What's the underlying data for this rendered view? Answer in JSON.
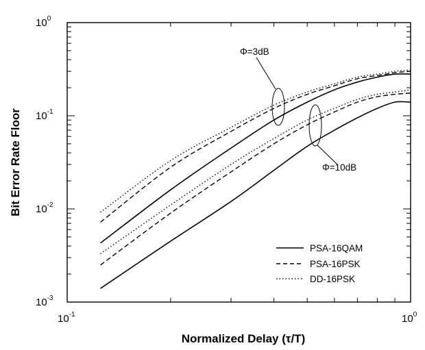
{
  "chart_data": {
    "type": "line",
    "xlabel": "Normalized Delay (τ/T)",
    "ylabel": "Bit Error Rate Floor",
    "xscale": "log",
    "yscale": "log",
    "xlim": [
      0.1,
      1
    ],
    "ylim": [
      0.001,
      1
    ],
    "grid": false,
    "legend_position": "bottom-right",
    "x_ticks": [
      {
        "base": "10",
        "exp": "-1"
      },
      {
        "base": "10",
        "exp": "0"
      }
    ],
    "y_ticks": [
      {
        "base": "10",
        "exp": "0"
      },
      {
        "base": "10",
        "exp": "-1"
      },
      {
        "base": "10",
        "exp": "-2"
      },
      {
        "base": "10",
        "exp": "-3"
      }
    ],
    "legend": [
      {
        "label": "PSA-16QAM",
        "style": "solid"
      },
      {
        "label": "PSA-16PSK",
        "style": "dashed"
      },
      {
        "label": "DD-16PSK",
        "style": "dotted"
      }
    ],
    "annotations": [
      {
        "text": "Φ=3dB",
        "x": 0.435,
        "y": 0.11
      },
      {
        "text": "Φ=10dB",
        "x": 0.59,
        "y": 0.07
      }
    ],
    "series": [
      {
        "name": "PSA-16QAM",
        "group": "Φ=3dB",
        "style": "solid",
        "x": [
          0.125,
          0.2,
          0.3,
          0.4,
          0.5,
          0.6,
          0.7,
          0.8,
          0.9,
          1.0
        ],
        "y": [
          0.0043,
          0.016,
          0.045,
          0.09,
          0.14,
          0.19,
          0.23,
          0.26,
          0.28,
          0.28
        ]
      },
      {
        "name": "PSA-16PSK",
        "group": "Φ=3dB",
        "style": "dashed",
        "x": [
          0.125,
          0.2,
          0.3,
          0.4,
          0.5,
          0.6,
          0.7,
          0.8,
          0.9,
          1.0
        ],
        "y": [
          0.0072,
          0.028,
          0.068,
          0.12,
          0.17,
          0.21,
          0.25,
          0.27,
          0.29,
          0.3
        ]
      },
      {
        "name": "DD-16PSK",
        "group": "Φ=3dB",
        "style": "dotted",
        "x": [
          0.125,
          0.2,
          0.3,
          0.4,
          0.5,
          0.6,
          0.7,
          0.8,
          0.9,
          1.0
        ],
        "y": [
          0.0092,
          0.033,
          0.075,
          0.13,
          0.18,
          0.22,
          0.26,
          0.28,
          0.3,
          0.31
        ]
      },
      {
        "name": "PSA-16QAM",
        "group": "Φ=10dB",
        "style": "solid",
        "x": [
          0.125,
          0.2,
          0.3,
          0.4,
          0.5,
          0.6,
          0.7,
          0.8,
          0.9,
          1.0
        ],
        "y": [
          0.0014,
          0.0045,
          0.012,
          0.026,
          0.047,
          0.07,
          0.095,
          0.12,
          0.14,
          0.14
        ]
      },
      {
        "name": "PSA-16PSK",
        "group": "Φ=10dB",
        "style": "dashed",
        "x": [
          0.125,
          0.2,
          0.3,
          0.4,
          0.5,
          0.6,
          0.7,
          0.8,
          0.9,
          1.0
        ],
        "y": [
          0.0025,
          0.009,
          0.025,
          0.05,
          0.08,
          0.11,
          0.14,
          0.16,
          0.17,
          0.175
        ]
      },
      {
        "name": "DD-16PSK",
        "group": "Φ=10dB",
        "style": "dotted",
        "x": [
          0.125,
          0.2,
          0.3,
          0.4,
          0.5,
          0.6,
          0.7,
          0.8,
          0.9,
          1.0
        ],
        "y": [
          0.0033,
          0.011,
          0.03,
          0.057,
          0.09,
          0.12,
          0.15,
          0.17,
          0.18,
          0.19
        ]
      }
    ]
  }
}
